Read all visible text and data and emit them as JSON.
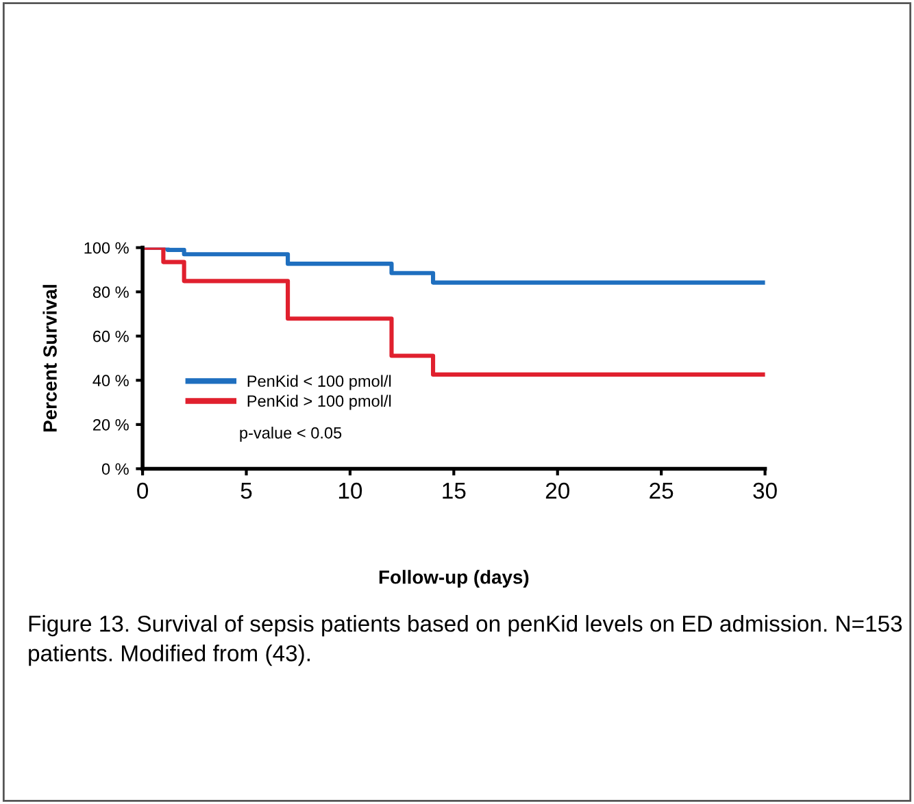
{
  "chart_data": {
    "type": "step",
    "xlabel": "Follow-up (days)",
    "ylabel": "Percent Survival",
    "series": [
      {
        "name": "PenKid < 100 pmol/l",
        "color": "#1f6fbf",
        "x": [
          0,
          1.2,
          2,
          7,
          12,
          14,
          30
        ],
        "values": [
          100,
          99,
          97,
          92.7,
          88.5,
          84.2,
          84.2
        ]
      },
      {
        "name": "PenKid > 100 pmol/l",
        "color": "#e0202e",
        "x": [
          0,
          1,
          2,
          7,
          12,
          14,
          30
        ],
        "values": [
          100,
          93.5,
          84.9,
          67.9,
          51.1,
          42.6,
          42.6
        ]
      }
    ],
    "xlim": [
      0,
      30
    ],
    "xticks": [
      0,
      5,
      10,
      15,
      20,
      25,
      30
    ],
    "ylim": [
      0,
      100
    ],
    "yticks": [
      {
        "value": 0,
        "label": "0 %"
      },
      {
        "value": 20,
        "label": "20 %"
      },
      {
        "value": 40,
        "label": "40 %"
      },
      {
        "value": 60,
        "label": "60 %"
      },
      {
        "value": 80,
        "label": "80 %"
      },
      {
        "value": 100,
        "label": "100 %"
      }
    ],
    "legend": "bottom left",
    "grid": false,
    "marker": "none",
    "line_style": "solid",
    "annotations": [
      "p-value < 0.05",
      "Figure 13. Survival of sepsis patients based on penKid levels on ED admission. N=153 patients. Modified from (43)."
    ]
  }
}
